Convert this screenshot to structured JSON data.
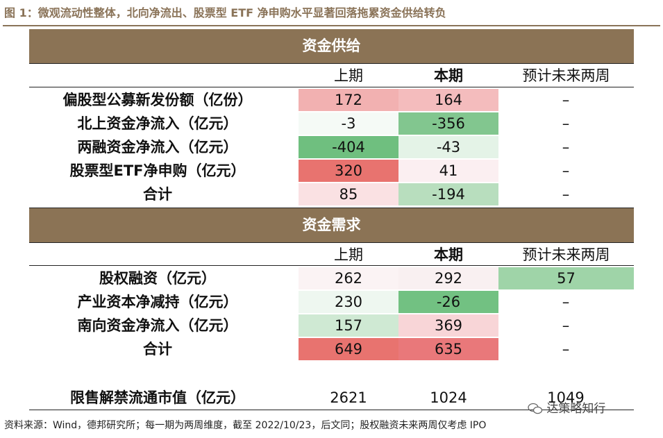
{
  "title": "图 1：微观流动性整体，北向净流出、股票型 ETF 净申购水平显著回落拖累资金供给转负",
  "supply": {
    "header": "资金供给",
    "cols": [
      "上期",
      "本期",
      "预计未来两周"
    ],
    "rows": [
      {
        "label": "偏股型公募新发份额（亿份）",
        "prev": "172",
        "curr": "164",
        "next": "–"
      },
      {
        "label": "北上资金净流入（亿元）",
        "prev": "-3",
        "curr": "-356",
        "next": "–"
      },
      {
        "label": "两融资金净流入（亿元）",
        "prev": "-404",
        "curr": "-43",
        "next": "–"
      },
      {
        "label": "股票型ETF净申购（亿元）",
        "prev": "320",
        "curr": "41",
        "next": "–"
      },
      {
        "label": "合计",
        "prev": "85",
        "curr": "-194",
        "next": "–"
      }
    ]
  },
  "demand": {
    "header": "资金需求",
    "cols": [
      "上期",
      "本期",
      "预计未来两周"
    ],
    "rows": [
      {
        "label": "股权融资（亿元）",
        "prev": "262",
        "curr": "292",
        "next": "57"
      },
      {
        "label": "产业资本净减持（亿元）",
        "prev": "230",
        "curr": "-26",
        "next": "–"
      },
      {
        "label": "南向资金净流入（亿元）",
        "prev": "157",
        "curr": "369",
        "next": "–"
      },
      {
        "label": "合计",
        "prev": "649",
        "curr": "635",
        "next": "–"
      }
    ]
  },
  "lockup": {
    "label": "限售解禁流通市值（亿元）",
    "prev": "2621",
    "curr": "1024",
    "next": "1049"
  },
  "source": "资料来源：Wind，德邦研究所；每一期为两周维度，截至 2022/10/23，后文同；股权融资未来两周仅考虑 IPO",
  "watermark": "达策略知行",
  "colors": {
    "band": "#8b7355",
    "title": "#8a7358",
    "red_strong": "#e8736f",
    "red_mid": "#f2b1b1",
    "red_light": "#f8d9da",
    "red_faint": "#fbeff1",
    "green_strong": "#6fbf7f",
    "green_mid": "#a9d9b0",
    "green_light": "#cfe9d3",
    "green_faint": "#eaf5ec"
  }
}
